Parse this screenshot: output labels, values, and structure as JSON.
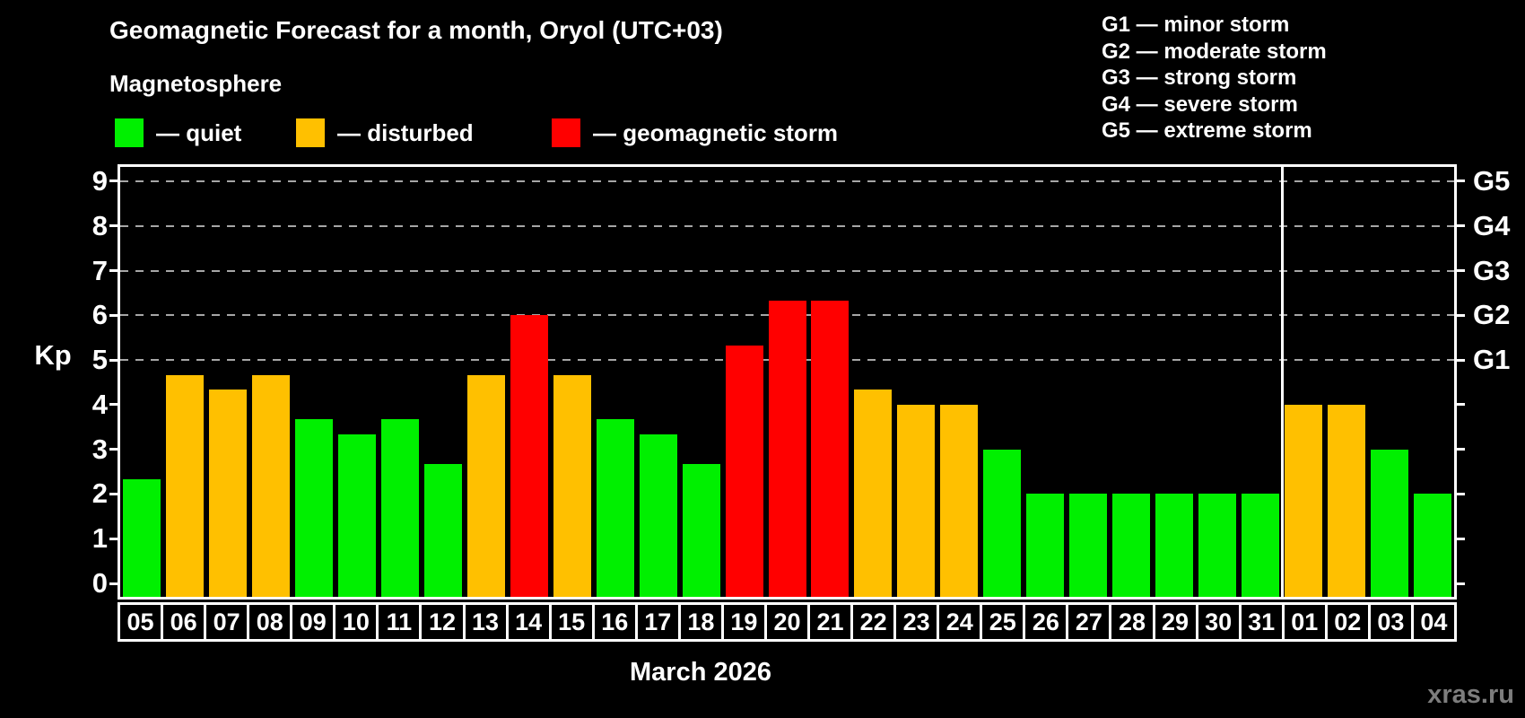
{
  "page": {
    "background": "#000000",
    "watermark": "xras.ru",
    "watermark_color": "#7d7d7d"
  },
  "header": {
    "title": "Geomagnetic Forecast for a month, Oryol (UTC+03)",
    "subtitle": "Magnetosphere"
  },
  "legend": {
    "items": [
      {
        "label": "— quiet",
        "status": "quiet",
        "color": "#00f000"
      },
      {
        "label": "— disturbed",
        "status": "disturbed",
        "color": "#ffc000"
      },
      {
        "label": "— geomagnetic storm",
        "status": "storm",
        "color": "#ff0000"
      }
    ]
  },
  "g_legend": [
    "G1 — minor storm",
    "G2 — moderate storm",
    "G3 — strong storm",
    "G4 — severe storm",
    "G5 — extreme storm"
  ],
  "chart_data": {
    "type": "bar",
    "title": "Geomagnetic Forecast for a month, Oryol (UTC+03)",
    "xlabel": "March 2026",
    "ylabel": "Kp",
    "ylim": [
      0,
      9
    ],
    "y_ticks": [
      0,
      1,
      2,
      3,
      4,
      5,
      6,
      7,
      8,
      9
    ],
    "grid": "horizontal dashed lines at Kp 5,6,7,8,9",
    "grid_color": "#a6a6a6",
    "legend_position": "top",
    "right_axis": [
      {
        "label": "G1",
        "kp": 5
      },
      {
        "label": "G2",
        "kp": 6
      },
      {
        "label": "G3",
        "kp": 7
      },
      {
        "label": "G4",
        "kp": 8
      },
      {
        "label": "G5",
        "kp": 9
      }
    ],
    "categories": [
      "05",
      "06",
      "07",
      "08",
      "09",
      "10",
      "11",
      "12",
      "13",
      "14",
      "15",
      "16",
      "17",
      "18",
      "19",
      "20",
      "21",
      "22",
      "23",
      "24",
      "25",
      "26",
      "27",
      "28",
      "29",
      "30",
      "31",
      "01",
      "02",
      "03",
      "04"
    ],
    "values": [
      2.33,
      4.67,
      4.33,
      4.67,
      3.67,
      3.33,
      3.67,
      2.67,
      4.67,
      6.0,
      4.67,
      3.67,
      3.33,
      2.67,
      5.33,
      6.33,
      6.33,
      4.33,
      4.0,
      4.0,
      3.0,
      2.0,
      2.0,
      2.0,
      2.0,
      2.0,
      2.0,
      4.0,
      4.0,
      3.0,
      2.0
    ],
    "statuses": [
      "quiet",
      "disturbed",
      "disturbed",
      "disturbed",
      "quiet",
      "quiet",
      "quiet",
      "quiet",
      "disturbed",
      "storm",
      "disturbed",
      "quiet",
      "quiet",
      "quiet",
      "storm",
      "storm",
      "storm",
      "disturbed",
      "disturbed",
      "disturbed",
      "quiet",
      "quiet",
      "quiet",
      "quiet",
      "quiet",
      "quiet",
      "quiet",
      "disturbed",
      "disturbed",
      "quiet",
      "quiet"
    ],
    "status_colors": {
      "quiet": "#00f000",
      "disturbed": "#ffc000",
      "storm": "#ff0000"
    },
    "separator_after_category": "31"
  }
}
